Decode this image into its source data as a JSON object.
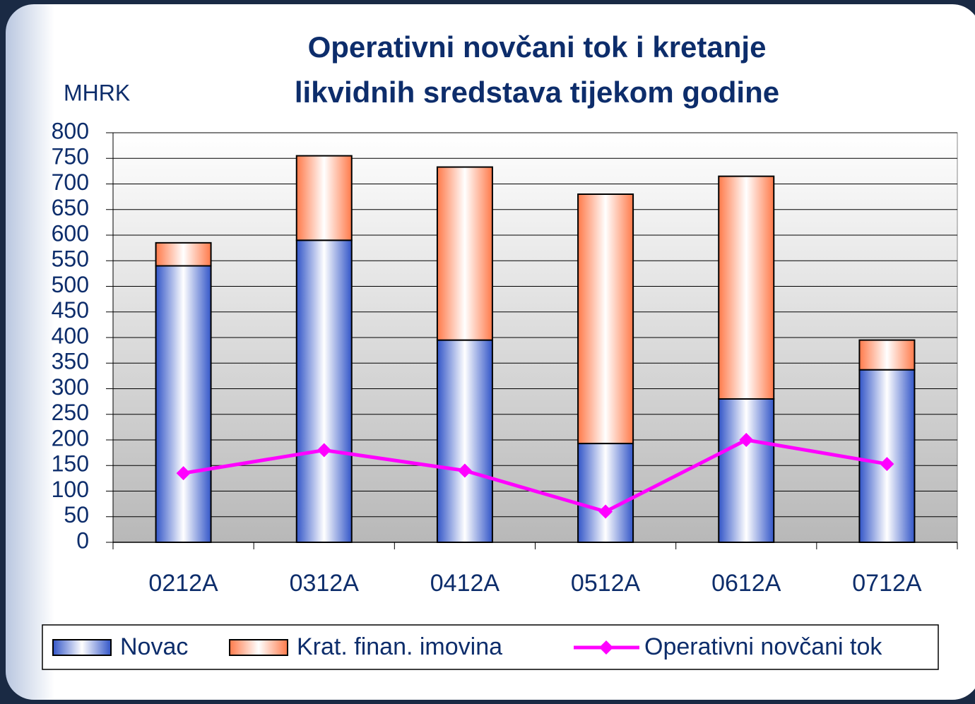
{
  "chart_data": {
    "type": "bar",
    "stacked": true,
    "title": "Operativni novčani tok i kretanje likvidnih sredstava tijekom godine",
    "y_label": "MHRK",
    "categories": [
      "0212A",
      "0312A",
      "0412A",
      "0512A",
      "0612A",
      "0712A"
    ],
    "series": [
      {
        "name": "Novac",
        "type": "bar",
        "color": "#3356c8",
        "values": [
          540,
          590,
          395,
          193,
          280,
          337
        ]
      },
      {
        "name": "Krat. finan. imovina",
        "type": "bar",
        "color": "#ff7a4a",
        "values": [
          45,
          165,
          338,
          487,
          435,
          58
        ]
      },
      {
        "name": "Operativni novčani tok",
        "type": "line",
        "color": "#ff00ff",
        "values": [
          135,
          180,
          140,
          60,
          200,
          153
        ]
      }
    ],
    "ylim": [
      0,
      800
    ],
    "yticks": [
      0,
      50,
      100,
      150,
      200,
      250,
      300,
      350,
      400,
      450,
      500,
      550,
      600,
      650,
      700,
      750,
      800
    ],
    "grid": true
  }
}
